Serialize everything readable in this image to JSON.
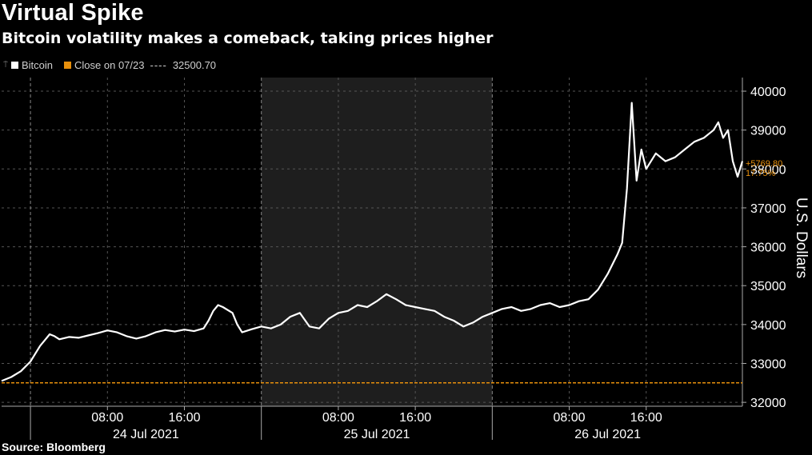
{
  "title": "Virtual Spike",
  "subtitle": "Bitcoin volatility makes a comeback, taking prices higher",
  "legend": {
    "series_label": "Bitcoin",
    "series_color": "#ffffff",
    "close_label": "Close on 07/23",
    "close_dash": "----",
    "close_value": "32500.70",
    "close_color": "#e8900c"
  },
  "source": "Source: Bloomberg",
  "chart_data": {
    "type": "line",
    "ylabel": "U.S. Dollars",
    "ylim": [
      31900,
      40350
    ],
    "yticks": [
      32000,
      33000,
      34000,
      35000,
      36000,
      37000,
      38000,
      39000,
      40000
    ],
    "xlim": [
      "2021-07-23 21:00",
      "2021-07-27 02:00"
    ],
    "xticks": [
      {
        "time": "2021-07-24 08:00",
        "label": "08:00"
      },
      {
        "time": "2021-07-24 16:00",
        "label": "16:00"
      },
      {
        "time": "2021-07-25 08:00",
        "label": "08:00"
      },
      {
        "time": "2021-07-25 16:00",
        "label": "16:00"
      },
      {
        "time": "2021-07-26 08:00",
        "label": "08:00"
      },
      {
        "time": "2021-07-26 16:00",
        "label": "16:00"
      }
    ],
    "day_labels": [
      {
        "time": "2021-07-24 12:00",
        "label": "24 Jul 2021"
      },
      {
        "time": "2021-07-25 12:00",
        "label": "25 Jul 2021"
      },
      {
        "time": "2021-07-26 12:00",
        "label": "26 Jul 2021"
      }
    ],
    "day_boundaries": [
      "2021-07-24 00:00",
      "2021-07-25 00:00",
      "2021-07-26 00:00"
    ],
    "shaded_range": [
      "2021-07-25 00:00",
      "2021-07-26 00:00"
    ],
    "reference_line": {
      "value": 32500.7,
      "label": "Close on 07/23",
      "color": "#e8900c"
    },
    "last_value": 38270.5,
    "change_annotation": {
      "lines": [
        "+5769.80",
        "17.75%"
      ],
      "color": "#e8900c"
    },
    "grid": true,
    "series": [
      {
        "name": "Bitcoin",
        "color": "#ffffff",
        "points": [
          [
            "2021-07-23 21:00",
            32550
          ],
          [
            "2021-07-23 22:00",
            32650
          ],
          [
            "2021-07-23 23:00",
            32800
          ],
          [
            "2021-07-24 00:00",
            33050
          ],
          [
            "2021-07-24 00:30",
            33250
          ],
          [
            "2021-07-24 01:00",
            33450
          ],
          [
            "2021-07-24 01:30",
            33600
          ],
          [
            "2021-07-24 02:00",
            33750
          ],
          [
            "2021-07-24 02:30",
            33700
          ],
          [
            "2021-07-24 03:00",
            33620
          ],
          [
            "2021-07-24 04:00",
            33680
          ],
          [
            "2021-07-24 05:00",
            33660
          ],
          [
            "2021-07-24 06:00",
            33720
          ],
          [
            "2021-07-24 07:00",
            33780
          ],
          [
            "2021-07-24 08:00",
            33850
          ],
          [
            "2021-07-24 09:00",
            33800
          ],
          [
            "2021-07-24 10:00",
            33700
          ],
          [
            "2021-07-24 11:00",
            33640
          ],
          [
            "2021-07-24 12:00",
            33700
          ],
          [
            "2021-07-24 13:00",
            33800
          ],
          [
            "2021-07-24 14:00",
            33860
          ],
          [
            "2021-07-24 15:00",
            33820
          ],
          [
            "2021-07-24 16:00",
            33870
          ],
          [
            "2021-07-24 17:00",
            33830
          ],
          [
            "2021-07-24 18:00",
            33900
          ],
          [
            "2021-07-24 18:30",
            34100
          ],
          [
            "2021-07-24 19:00",
            34350
          ],
          [
            "2021-07-24 19:30",
            34500
          ],
          [
            "2021-07-24 20:00",
            34450
          ],
          [
            "2021-07-24 21:00",
            34300
          ],
          [
            "2021-07-24 21:30",
            34000
          ],
          [
            "2021-07-24 22:00",
            33800
          ],
          [
            "2021-07-24 23:00",
            33880
          ],
          [
            "2021-07-25 00:00",
            33950
          ],
          [
            "2021-07-25 01:00",
            33900
          ],
          [
            "2021-07-25 02:00",
            34000
          ],
          [
            "2021-07-25 03:00",
            34200
          ],
          [
            "2021-07-25 04:00",
            34300
          ],
          [
            "2021-07-25 05:00",
            33950
          ],
          [
            "2021-07-25 06:00",
            33900
          ],
          [
            "2021-07-25 07:00",
            34150
          ],
          [
            "2021-07-25 08:00",
            34300
          ],
          [
            "2021-07-25 09:00",
            34350
          ],
          [
            "2021-07-25 10:00",
            34500
          ],
          [
            "2021-07-25 11:00",
            34450
          ],
          [
            "2021-07-25 12:00",
            34600
          ],
          [
            "2021-07-25 13:00",
            34780
          ],
          [
            "2021-07-25 14:00",
            34650
          ],
          [
            "2021-07-25 15:00",
            34500
          ],
          [
            "2021-07-25 16:00",
            34450
          ],
          [
            "2021-07-25 17:00",
            34400
          ],
          [
            "2021-07-25 18:00",
            34350
          ],
          [
            "2021-07-25 19:00",
            34200
          ],
          [
            "2021-07-25 20:00",
            34100
          ],
          [
            "2021-07-25 21:00",
            33950
          ],
          [
            "2021-07-25 22:00",
            34050
          ],
          [
            "2021-07-25 23:00",
            34200
          ],
          [
            "2021-07-26 00:00",
            34300
          ],
          [
            "2021-07-26 01:00",
            34400
          ],
          [
            "2021-07-26 02:00",
            34450
          ],
          [
            "2021-07-26 03:00",
            34350
          ],
          [
            "2021-07-26 04:00",
            34400
          ],
          [
            "2021-07-26 05:00",
            34500
          ],
          [
            "2021-07-26 06:00",
            34550
          ],
          [
            "2021-07-26 07:00",
            34450
          ],
          [
            "2021-07-26 08:00",
            34500
          ],
          [
            "2021-07-26 09:00",
            34600
          ],
          [
            "2021-07-26 10:00",
            34650
          ],
          [
            "2021-07-26 11:00",
            34900
          ],
          [
            "2021-07-26 12:00",
            35300
          ],
          [
            "2021-07-26 13:00",
            35800
          ],
          [
            "2021-07-26 13:30",
            36100
          ],
          [
            "2021-07-26 14:00",
            37500
          ],
          [
            "2021-07-26 14:30",
            39700
          ],
          [
            "2021-07-26 15:00",
            37700
          ],
          [
            "2021-07-26 15:30",
            38500
          ],
          [
            "2021-07-26 16:00",
            38000
          ],
          [
            "2021-07-26 17:00",
            38400
          ],
          [
            "2021-07-26 18:00",
            38200
          ],
          [
            "2021-07-26 19:00",
            38300
          ],
          [
            "2021-07-26 20:00",
            38500
          ],
          [
            "2021-07-26 21:00",
            38700
          ],
          [
            "2021-07-26 22:00",
            38800
          ],
          [
            "2021-07-26 23:00",
            39000
          ],
          [
            "2021-07-26 23:30",
            39200
          ],
          [
            "2021-07-27 00:00",
            38800
          ],
          [
            "2021-07-27 00:30",
            39000
          ],
          [
            "2021-07-27 01:00",
            38200
          ],
          [
            "2021-07-27 01:30",
            37800
          ],
          [
            "2021-07-27 02:00",
            38200
          ]
        ]
      }
    ]
  }
}
